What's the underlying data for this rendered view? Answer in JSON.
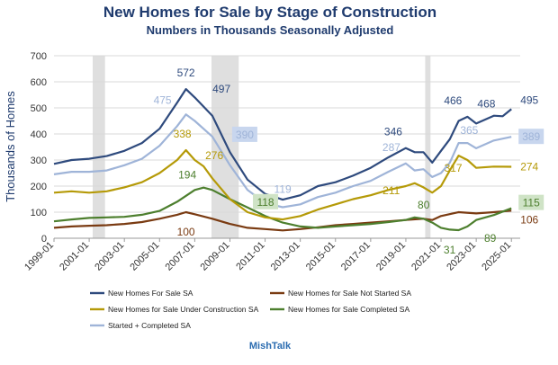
{
  "chart_data": {
    "type": "line",
    "title": "New Homes for Sale by Stage of Construction",
    "subtitle": "Numbers in Thousands Seasonally Adjusted",
    "xlabel": "",
    "ylabel": "Thousands of Homes",
    "source": "MishTalk",
    "xlim": [
      1999.0,
      2025.5
    ],
    "ylim": [
      0,
      700
    ],
    "yticks": [
      0,
      100,
      200,
      300,
      400,
      500,
      600,
      700
    ],
    "xticks": [
      "1999-01",
      "2001-01",
      "2003-01",
      "2005-01",
      "2007-01",
      "2009-01",
      "2011-01",
      "2013-01",
      "2015-01",
      "2017-01",
      "2019-01",
      "2021-01",
      "2023-01",
      "2025-01"
    ],
    "grid": "horizontal",
    "legend": "bottom",
    "shaded_periods": [
      [
        2001.2,
        2001.9
      ],
      [
        2007.95,
        2009.5
      ],
      [
        2020.1,
        2020.4
      ]
    ],
    "series": [
      {
        "name": "New Homes For Sale SA",
        "color": "#2e4a7d",
        "x": [
          1999.0,
          2000.0,
          2001.0,
          2002.0,
          2003.0,
          2004.0,
          2005.0,
          2006.0,
          2006.5,
          2007.0,
          2008.0,
          2009.0,
          2010.0,
          2011.0,
          2012.0,
          2013.0,
          2014.0,
          2015.0,
          2016.0,
          2017.0,
          2018.0,
          2019.0,
          2019.5,
          2020.0,
          2020.5,
          2021.0,
          2021.5,
          2022.0,
          2022.5,
          2023.0,
          2024.0,
          2024.5,
          2025.0
        ],
        "values": [
          285,
          300,
          305,
          315,
          335,
          365,
          420,
          520,
          572,
          540,
          470,
          330,
          225,
          170,
          148,
          165,
          200,
          215,
          240,
          270,
          310,
          346,
          330,
          330,
          290,
          335,
          380,
          450,
          466,
          440,
          470,
          468,
          495
        ]
      },
      {
        "name": "New Homes for Sale Not Started SA",
        "color": "#7a3b12",
        "x": [
          1999.0,
          2000.0,
          2001.0,
          2002.0,
          2003.0,
          2004.0,
          2005.0,
          2006.0,
          2006.5,
          2007.0,
          2008.0,
          2009.0,
          2010.0,
          2011.0,
          2012.0,
          2013.0,
          2014.0,
          2015.0,
          2016.0,
          2017.0,
          2018.0,
          2019.0,
          2020.0,
          2020.5,
          2021.0,
          2022.0,
          2023.0,
          2024.0,
          2025.0
        ],
        "values": [
          40,
          45,
          48,
          50,
          55,
          62,
          75,
          90,
          100,
          92,
          75,
          55,
          40,
          35,
          30,
          35,
          42,
          50,
          55,
          60,
          65,
          70,
          75,
          70,
          85,
          100,
          95,
          100,
          106
        ]
      },
      {
        "name": "New Homes for Sale Under Construction SA",
        "color": "#b59a08",
        "x": [
          1999.0,
          2000.0,
          2001.0,
          2002.0,
          2003.0,
          2004.0,
          2005.0,
          2006.0,
          2006.5,
          2007.0,
          2007.5,
          2008.0,
          2009.0,
          2010.0,
          2011.0,
          2012.0,
          2013.0,
          2014.0,
          2015.0,
          2016.0,
          2017.0,
          2018.0,
          2019.0,
          2019.5,
          2020.0,
          2020.5,
          2021.0,
          2021.5,
          2022.0,
          2022.5,
          2023.0,
          2024.0,
          2025.0
        ],
        "values": [
          175,
          180,
          175,
          180,
          195,
          215,
          250,
          300,
          338,
          300,
          276,
          230,
          150,
          100,
          80,
          72,
          85,
          110,
          130,
          150,
          165,
          185,
          200,
          211,
          195,
          175,
          200,
          260,
          317,
          300,
          270,
          275,
          274
        ]
      },
      {
        "name": "New Homes for Sale Completed SA",
        "color": "#4d7f2e",
        "x": [
          1999.0,
          2000.0,
          2001.0,
          2002.0,
          2003.0,
          2004.0,
          2005.0,
          2006.0,
          2007.0,
          2007.5,
          2008.0,
          2009.0,
          2010.0,
          2011.0,
          2012.0,
          2013.0,
          2014.0,
          2015.0,
          2016.0,
          2017.0,
          2018.0,
          2019.0,
          2019.5,
          2020.0,
          2020.5,
          2021.0,
          2021.5,
          2022.0,
          2022.5,
          2023.0,
          2024.0,
          2025.0
        ],
        "values": [
          65,
          72,
          78,
          80,
          82,
          90,
          105,
          140,
          185,
          194,
          185,
          150,
          118,
          85,
          60,
          45,
          40,
          45,
          50,
          55,
          62,
          70,
          80,
          75,
          60,
          40,
          33,
          31,
          45,
          70,
          89,
          115
        ]
      },
      {
        "name": "Started + Completed SA",
        "color": "#9fb4d8",
        "x": [
          1999.0,
          2000.0,
          2001.0,
          2002.0,
          2003.0,
          2004.0,
          2005.0,
          2006.0,
          2006.5,
          2007.0,
          2008.0,
          2009.0,
          2010.0,
          2011.0,
          2012.0,
          2013.0,
          2014.0,
          2015.0,
          2016.0,
          2017.0,
          2018.0,
          2019.0,
          2019.5,
          2020.0,
          2020.5,
          2021.0,
          2021.5,
          2022.0,
          2022.5,
          2023.0,
          2024.0,
          2025.0
        ],
        "values": [
          245,
          255,
          255,
          260,
          280,
          305,
          355,
          430,
          475,
          450,
          390,
          280,
          185,
          135,
          119,
          130,
          158,
          175,
          200,
          220,
          255,
          287,
          260,
          265,
          235,
          250,
          290,
          365,
          365,
          345,
          375,
          389
        ]
      }
    ],
    "annotations": [
      {
        "text": "572",
        "series": 0,
        "x": 2006.5,
        "y": 572
      },
      {
        "text": "497",
        "series": 0,
        "x": 2007.5,
        "y": 497
      },
      {
        "text": "346",
        "series": 0,
        "x": 2019.0,
        "y": 346
      },
      {
        "text": "466",
        "series": 0,
        "x": 2022.5,
        "y": 466
      },
      {
        "text": "468",
        "series": 0,
        "x": 2024.5,
        "y": 468
      },
      {
        "text": "495",
        "series": 0,
        "x": 2025.0,
        "y": 495
      },
      {
        "text": "475",
        "series": 4,
        "x": 2006.5,
        "y": 475
      },
      {
        "text": "390",
        "series": 4,
        "x": 2008.0,
        "y": 390
      },
      {
        "text": "119",
        "series": 4,
        "x": 2012.0,
        "y": 119
      },
      {
        "text": "287",
        "series": 4,
        "x": 2019.0,
        "y": 287
      },
      {
        "text": "365",
        "series": 4,
        "x": 2022.5,
        "y": 365
      },
      {
        "text": "389",
        "series": 4,
        "x": 2025.0,
        "y": 389
      },
      {
        "text": "338",
        "series": 2,
        "x": 2006.5,
        "y": 338
      },
      {
        "text": "276",
        "series": 2,
        "x": 2007.5,
        "y": 276
      },
      {
        "text": "211",
        "series": 2,
        "x": 2019.5,
        "y": 211
      },
      {
        "text": "317",
        "series": 2,
        "x": 2022.0,
        "y": 317
      },
      {
        "text": "274",
        "series": 2,
        "x": 2025.0,
        "y": 274
      },
      {
        "text": "194",
        "series": 3,
        "x": 2007.5,
        "y": 194
      },
      {
        "text": "118",
        "series": 3,
        "x": 2010.0,
        "y": 118
      },
      {
        "text": "80",
        "series": 3,
        "x": 2019.5,
        "y": 80
      },
      {
        "text": "31",
        "series": 3,
        "x": 2022.0,
        "y": 31
      },
      {
        "text": "89",
        "series": 3,
        "x": 2024.0,
        "y": 89
      },
      {
        "text": "115",
        "series": 3,
        "x": 2025.0,
        "y": 115
      },
      {
        "text": "100",
        "series": 1,
        "x": 2006.5,
        "y": 100
      },
      {
        "text": "106",
        "series": 1,
        "x": 2025.0,
        "y": 106
      }
    ]
  }
}
